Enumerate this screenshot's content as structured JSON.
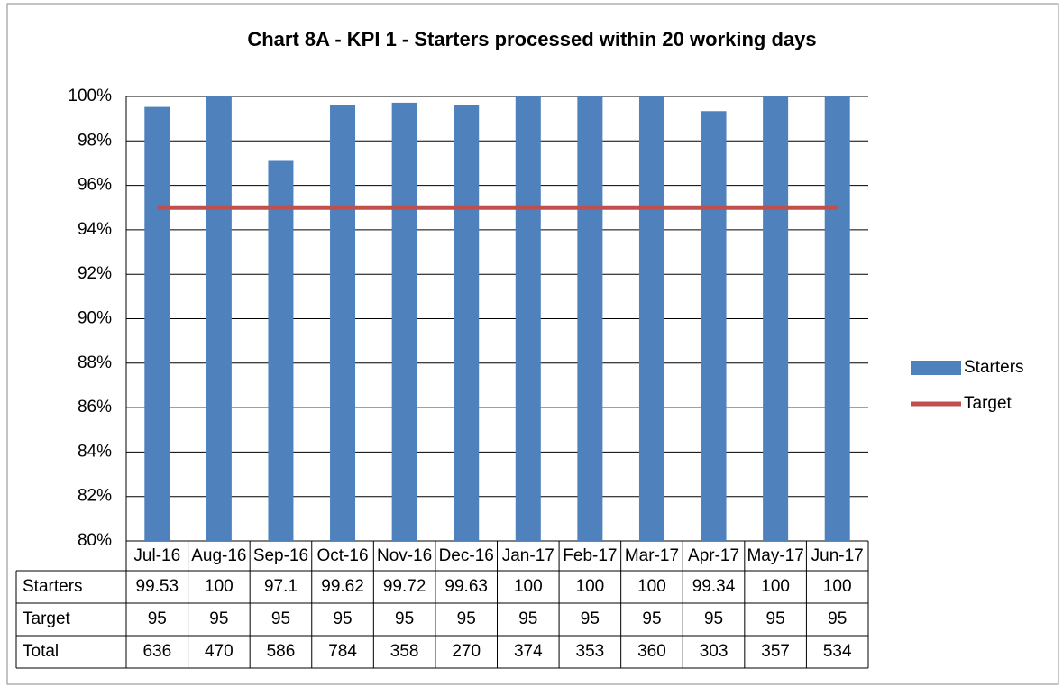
{
  "chart_data": {
    "type": "bar",
    "title": "Chart 8A - KPI 1 - Starters processed within 20 working days",
    "categories": [
      "Jul-16",
      "Aug-16",
      "Sep-16",
      "Oct-16",
      "Nov-16",
      "Dec-16",
      "Jan-17",
      "Feb-17",
      "Mar-17",
      "Apr-17",
      "May-17",
      "Jun-17"
    ],
    "series": [
      {
        "name": "Starters",
        "type": "bar",
        "color": "#4f81bd",
        "values": [
          99.53,
          100,
          97.1,
          99.62,
          99.72,
          99.63,
          100,
          100,
          100,
          99.34,
          100,
          100
        ]
      },
      {
        "name": "Target",
        "type": "line",
        "color": "#c0504d",
        "values": [
          95,
          95,
          95,
          95,
          95,
          95,
          95,
          95,
          95,
          95,
          95,
          95
        ]
      }
    ],
    "extra_rows": [
      {
        "name": "Total",
        "values": [
          636,
          470,
          586,
          784,
          358,
          270,
          374,
          353,
          360,
          303,
          357,
          534
        ]
      }
    ],
    "ylim": [
      80,
      100
    ],
    "yticks": [
      {
        "value": 80,
        "label": "80%"
      },
      {
        "value": 82,
        "label": "82%"
      },
      {
        "value": 84,
        "label": "84%"
      },
      {
        "value": 86,
        "label": "86%"
      },
      {
        "value": 88,
        "label": "88%"
      },
      {
        "value": 90,
        "label": "90%"
      },
      {
        "value": 92,
        "label": "92%"
      },
      {
        "value": 94,
        "label": "94%"
      },
      {
        "value": 96,
        "label": "96%"
      },
      {
        "value": 98,
        "label": "98%"
      },
      {
        "value": 100,
        "label": "100%"
      }
    ],
    "grid": true,
    "legend": "right"
  }
}
